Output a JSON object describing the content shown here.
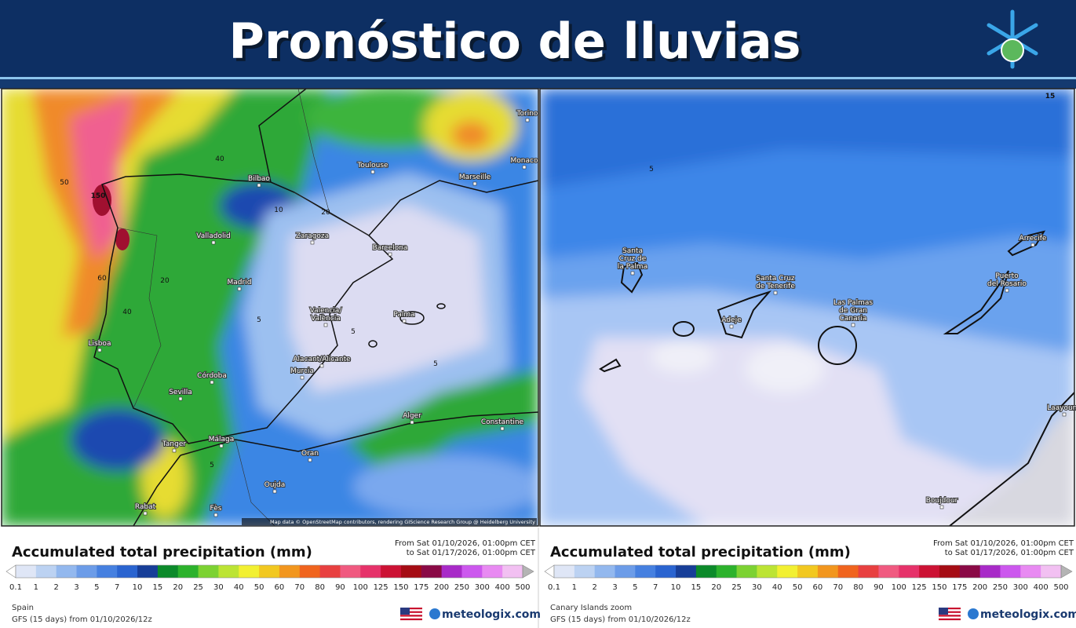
{
  "header": {
    "title": "Pronóstico de lluvias"
  },
  "panels": [
    {
      "map_labels": [
        {
          "lines": [
            "Bilbao"
          ]
        },
        {
          "lines": [
            "Toulouse"
          ]
        },
        {
          "lines": [
            "Marseille"
          ]
        },
        {
          "lines": [
            "Monaco"
          ]
        },
        {
          "lines": [
            "Torino"
          ]
        },
        {
          "lines": [
            "Valladolid"
          ]
        },
        {
          "lines": [
            "Zaragoza"
          ]
        },
        {
          "lines": [
            "Barcelona"
          ]
        },
        {
          "lines": [
            "Madrid"
          ]
        },
        {
          "lines": [
            "Valencia/",
            "València"
          ]
        },
        {
          "lines": [
            "Palma"
          ]
        },
        {
          "lines": [
            "Lisboa"
          ]
        },
        {
          "lines": [
            "Alacant/Alicante"
          ]
        },
        {
          "lines": [
            "Murcia"
          ]
        },
        {
          "lines": [
            "Córdoba"
          ]
        },
        {
          "lines": [
            "Sevilla"
          ]
        },
        {
          "lines": [
            "Málaga"
          ]
        },
        {
          "lines": [
            "Alger"
          ]
        },
        {
          "lines": [
            "Constantine"
          ]
        },
        {
          "lines": [
            "Tanger"
          ]
        },
        {
          "lines": [
            "Oran"
          ]
        },
        {
          "lines": [
            "Oujda"
          ]
        },
        {
          "lines": [
            "Rabat"
          ]
        },
        {
          "lines": [
            "Fès"
          ]
        }
      ],
      "contours": [
        "150",
        "40",
        "50",
        "60",
        "20",
        "40",
        "5",
        "5",
        "5",
        "20",
        "10",
        "5"
      ],
      "credits": "Map data © OpenStreetMap contributors, rendering GIScience Research Group @ Heidelberg University",
      "legend": {
        "title": "Accumulated total precipitation (mm)",
        "period": [
          "From Sat 01/10/2026, 01:00pm CET",
          "to Sat 01/17/2026, 01:00pm CET"
        ],
        "scale": [
          0.1,
          1,
          2,
          3,
          5,
          7,
          10,
          15,
          20,
          25,
          30,
          40,
          50,
          60,
          70,
          80,
          90,
          100,
          125,
          150,
          175,
          200,
          250,
          300,
          400,
          500
        ],
        "colors": [
          "#dfe6f6",
          "#bcd2f2",
          "#93b8ee",
          "#6c9ce8",
          "#4680e0",
          "#2a64d0",
          "#173e98",
          "#0c8a2a",
          "#2cb22c",
          "#7cd232",
          "#bce434",
          "#f2f032",
          "#f2c820",
          "#f2961e",
          "#f0641e",
          "#e84040",
          "#f05a80",
          "#e6326a",
          "#cc1234",
          "#a50c14",
          "#8a0a46",
          "#a82ac8",
          "#cc58ee",
          "#e88af2",
          "#f2c0f2"
        ],
        "region": "Spain",
        "model": "GFS (15 days) from 01/10/2026/12z",
        "logo": "meteologix.com"
      }
    },
    {
      "map_labels": [
        {
          "lines": [
            "Santa",
            "Cruz de",
            "la Palma"
          ]
        },
        {
          "lines": [
            "Santa Cruz",
            "de Tenerife"
          ]
        },
        {
          "lines": [
            "Las Palmas",
            "de Gran",
            "Canaria"
          ]
        },
        {
          "lines": [
            "Adeje"
          ]
        },
        {
          "lines": [
            "Puerto",
            "del Rosario"
          ]
        },
        {
          "lines": [
            "Arrecife"
          ]
        },
        {
          "lines": [
            "Laayoune"
          ]
        },
        {
          "lines": [
            "Boujdour"
          ]
        }
      ],
      "contours": [
        "15",
        "5"
      ],
      "credits": "Map data © OpenStreetMap contributors, rendering GIScience Research Group @ Heidelberg University",
      "legend": {
        "title": "Accumulated total precipitation (mm)",
        "period": [
          "From Sat 01/10/2026, 01:00pm CET",
          "to Sat 01/17/2026, 01:00pm CET"
        ],
        "scale": [
          0.1,
          1,
          2,
          3,
          5,
          7,
          10,
          15,
          20,
          25,
          30,
          40,
          50,
          60,
          70,
          80,
          90,
          100,
          125,
          150,
          175,
          200,
          250,
          300,
          400,
          500
        ],
        "colors": [
          "#dfe6f6",
          "#bcd2f2",
          "#93b8ee",
          "#6c9ce8",
          "#4680e0",
          "#2a64d0",
          "#173e98",
          "#0c8a2a",
          "#2cb22c",
          "#7cd232",
          "#bce434",
          "#f2f032",
          "#f2c820",
          "#f2961e",
          "#f0641e",
          "#e84040",
          "#f05a80",
          "#e6326a",
          "#cc1234",
          "#a50c14",
          "#8a0a46",
          "#a82ac8",
          "#cc58ee",
          "#e88af2",
          "#f2c0f2"
        ],
        "region": "Canary Islands zoom",
        "model": "GFS (15 days) from 01/10/2026/12z",
        "logo": "meteologix.com"
      }
    }
  ]
}
